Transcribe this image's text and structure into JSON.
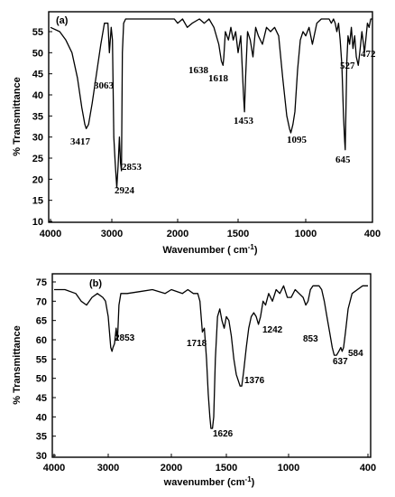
{
  "chart_data": [
    {
      "type": "line",
      "panel_label": "(a)",
      "xlabel": "Wavenumber ( cm",
      "xlabel_sup": "-1",
      "xlabel_tail": ")",
      "ylabel": "% Transmittance",
      "xlim": [
        4000,
        400
      ],
      "ylim": [
        10,
        58
      ],
      "x_ticks": [
        "4000",
        "3000",
        "2000",
        "1500",
        "1000",
        "400"
      ],
      "y_ticks": [
        "10",
        "15",
        "20",
        "25",
        "30",
        "35",
        "40",
        "45",
        "50",
        "55"
      ],
      "series": [
        {
          "x": [
            4000,
            3850,
            3750,
            3650,
            3560,
            3490,
            3440,
            3417,
            3380,
            3320,
            3250,
            3180,
            3120,
            3063,
            3040,
            3010,
            2990,
            2970,
            2950,
            2924,
            2905,
            2885,
            2868,
            2853,
            2840,
            2820,
            2790,
            2750,
            2700,
            2600,
            2400,
            2200,
            2050,
            2000,
            1960,
            1920,
            1880,
            1820,
            1780,
            1740,
            1700,
            1660,
            1638,
            1625,
            1618,
            1605,
            1580,
            1560,
            1540,
            1520,
            1500,
            1480,
            1460,
            1453,
            1445,
            1430,
            1410,
            1390,
            1370,
            1350,
            1320,
            1290,
            1260,
            1230,
            1200,
            1170,
            1140,
            1120,
            1110,
            1095,
            1080,
            1060,
            1040,
            1020,
            1000,
            970,
            940,
            900,
            860,
            820,
            790,
            770,
            750,
            735,
            720,
            705,
            690,
            675,
            660,
            650,
            645,
            640,
            630,
            620,
            605,
            590,
            575,
            560,
            545,
            527,
            510,
            495,
            480,
            472,
            460,
            445,
            430,
            415,
            400
          ],
          "y": [
            56,
            55,
            53,
            50,
            44,
            37,
            33,
            32,
            33,
            38,
            45,
            52,
            57,
            57,
            50,
            56,
            53,
            30,
            24,
            18,
            23,
            30,
            24,
            22,
            50,
            57,
            58,
            58,
            58,
            58,
            58,
            58,
            58,
            57,
            58,
            56,
            57,
            58,
            57,
            58,
            56,
            52,
            48,
            47,
            49,
            55,
            53,
            56,
            53,
            55,
            50,
            54,
            40,
            36,
            44,
            55,
            53,
            49,
            56,
            54,
            52,
            56,
            55,
            56,
            54,
            44,
            35,
            32,
            31,
            33,
            36,
            46,
            53,
            55,
            54,
            56,
            52,
            57,
            58,
            58,
            58,
            57,
            58,
            57,
            55,
            57,
            53,
            47,
            35,
            29,
            27,
            34,
            48,
            54,
            52,
            56,
            51,
            54,
            49,
            47,
            51,
            55,
            52,
            50,
            53,
            57,
            56,
            58,
            58
          ]
        }
      ],
      "annotations": [
        {
          "text": "3417",
          "x": 3417,
          "y": 32
        },
        {
          "text": "3063",
          "x": 3063,
          "y": 57
        },
        {
          "text": "2853",
          "x": 2853,
          "y": 22
        },
        {
          "text": "2924",
          "x": 2924,
          "y": 18
        },
        {
          "text": "1638",
          "x": 1638,
          "y": 48
        },
        {
          "text": "1618",
          "x": 1618,
          "y": 47
        },
        {
          "text": "1453",
          "x": 1453,
          "y": 36
        },
        {
          "text": "1095",
          "x": 1095,
          "y": 31
        },
        {
          "text": "645",
          "x": 645,
          "y": 27
        },
        {
          "text": "527",
          "x": 527,
          "y": 47
        },
        {
          "text": "472",
          "x": 472,
          "y": 50
        }
      ]
    },
    {
      "type": "line",
      "panel_label": "(b)",
      "xlabel": "wavenumber (cm",
      "xlabel_sup": "-1",
      "xlabel_tail": ")",
      "ylabel": "% Transmittance",
      "xlim": [
        4000,
        400
      ],
      "ylim": [
        30,
        75
      ],
      "x_ticks": [
        "4000",
        "3000",
        "2000",
        "1500",
        "1000",
        "400"
      ],
      "y_ticks": [
        "30",
        "35",
        "40",
        "45",
        "50",
        "55",
        "60",
        "65",
        "70",
        "75"
      ],
      "series": [
        {
          "x": [
            4000,
            3800,
            3600,
            3500,
            3400,
            3300,
            3200,
            3100,
            3050,
            3000,
            2960,
            2940,
            2924,
            2900,
            2875,
            2853,
            2830,
            2800,
            2750,
            2700,
            2500,
            2300,
            2100,
            2000,
            1900,
            1850,
            1800,
            1760,
            1740,
            1718,
            1700,
            1680,
            1665,
            1650,
            1640,
            1626,
            1615,
            1600,
            1580,
            1560,
            1540,
            1520,
            1500,
            1480,
            1460,
            1440,
            1420,
            1400,
            1390,
            1376,
            1360,
            1340,
            1320,
            1300,
            1280,
            1260,
            1242,
            1225,
            1205,
            1185,
            1160,
            1130,
            1100,
            1070,
            1040,
            1010,
            980,
            950,
            920,
            890,
            870,
            853,
            835,
            815,
            790,
            770,
            750,
            730,
            710,
            690,
            670,
            655,
            637,
            620,
            605,
            595,
            584,
            570,
            550,
            520,
            480,
            440,
            400
          ],
          "y": [
            73,
            73,
            72,
            70,
            69,
            71,
            72,
            71,
            70,
            66,
            58,
            57,
            58,
            59,
            63,
            60,
            69,
            72,
            72,
            72,
            72.5,
            73,
            72,
            73,
            72,
            73,
            72,
            72,
            70,
            62,
            63,
            55,
            46,
            40,
            37,
            37,
            40,
            55,
            66,
            68,
            65,
            63,
            66,
            65,
            61,
            55,
            51,
            49,
            48,
            48,
            52,
            58,
            63,
            66,
            67,
            66,
            64,
            66,
            70,
            69,
            72,
            70,
            73,
            72,
            74,
            71,
            71,
            73,
            72,
            71,
            69,
            70,
            73,
            74,
            74,
            74,
            73,
            70,
            66,
            62,
            58,
            56,
            56,
            57,
            58,
            57,
            58,
            62,
            68,
            72,
            73,
            74,
            74
          ]
        }
      ],
      "annotations": [
        {
          "text": "2853",
          "x": 2853,
          "y": 60
        },
        {
          "text": "1718",
          "x": 1718,
          "y": 62
        },
        {
          "text": "1626",
          "x": 1626,
          "y": 37
        },
        {
          "text": "1376",
          "x": 1376,
          "y": 48
        },
        {
          "text": "1242",
          "x": 1242,
          "y": 64
        },
        {
          "text": "853",
          "x": 853,
          "y": 70
        },
        {
          "text": "637",
          "x": 637,
          "y": 56
        },
        {
          "text": "584",
          "x": 584,
          "y": 58
        }
      ]
    }
  ]
}
